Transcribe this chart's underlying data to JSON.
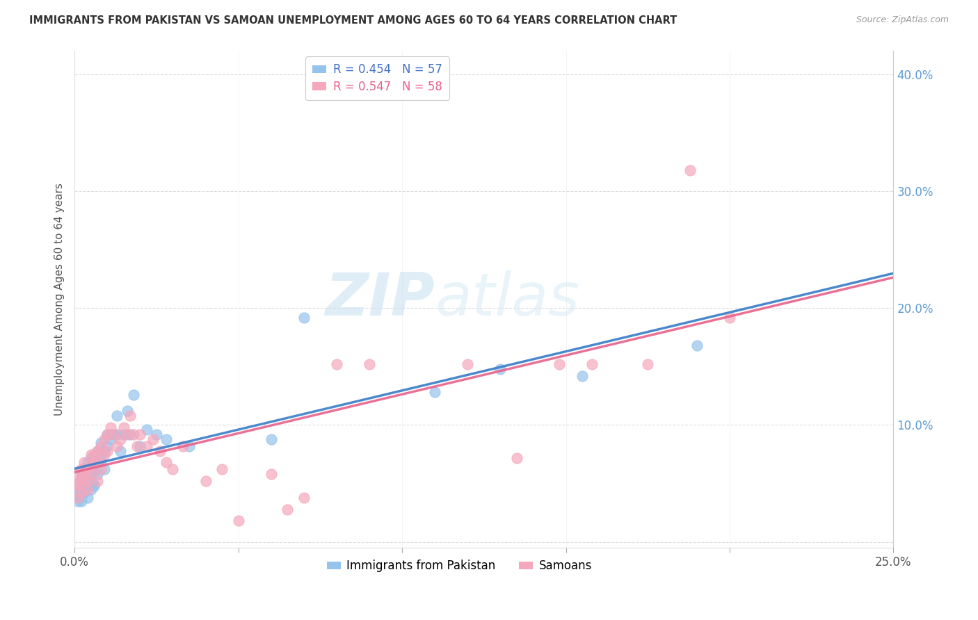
{
  "title": "IMMIGRANTS FROM PAKISTAN VS SAMOAN UNEMPLOYMENT AMONG AGES 60 TO 64 YEARS CORRELATION CHART",
  "source": "Source: ZipAtlas.com",
  "ylabel": "Unemployment Among Ages 60 to 64 years",
  "xlim": [
    0.0,
    0.25
  ],
  "ylim": [
    -0.005,
    0.42
  ],
  "yticks_right": [
    0.0,
    0.1,
    0.2,
    0.3,
    0.4
  ],
  "ytick_labels_right": [
    "",
    "10.0%",
    "20.0%",
    "30.0%",
    "40.0%"
  ],
  "legend1_label": "R = 0.454   N = 57",
  "legend2_label": "R = 0.547   N = 58",
  "legend_series1": "Immigrants from Pakistan",
  "legend_series2": "Samoans",
  "color_pakistan": "#94C3EC",
  "color_samoan": "#F5A7BC",
  "color_pakistan_line": "#3B7EC8",
  "color_samoan_line": "#E8628A",
  "color_pakistan_dashed": "#A0C8E8",
  "watermark_zip": "ZIP",
  "watermark_atlas": "atlas",
  "pakistan_x": [
    0.0005,
    0.001,
    0.001,
    0.001,
    0.001,
    0.002,
    0.002,
    0.002,
    0.002,
    0.002,
    0.003,
    0.003,
    0.003,
    0.003,
    0.004,
    0.004,
    0.004,
    0.004,
    0.005,
    0.005,
    0.005,
    0.005,
    0.006,
    0.006,
    0.006,
    0.006,
    0.007,
    0.007,
    0.007,
    0.008,
    0.008,
    0.008,
    0.009,
    0.009,
    0.01,
    0.01,
    0.011,
    0.011,
    0.012,
    0.013,
    0.013,
    0.014,
    0.015,
    0.016,
    0.017,
    0.018,
    0.02,
    0.022,
    0.025,
    0.028,
    0.035,
    0.06,
    0.07,
    0.11,
    0.13,
    0.155,
    0.19
  ],
  "pakistan_y": [
    0.04,
    0.045,
    0.038,
    0.05,
    0.035,
    0.055,
    0.042,
    0.035,
    0.048,
    0.06,
    0.062,
    0.05,
    0.042,
    0.055,
    0.068,
    0.048,
    0.038,
    0.055,
    0.06,
    0.072,
    0.05,
    0.045,
    0.072,
    0.06,
    0.05,
    0.048,
    0.078,
    0.058,
    0.068,
    0.085,
    0.068,
    0.072,
    0.062,
    0.078,
    0.082,
    0.092,
    0.088,
    0.092,
    0.092,
    0.092,
    0.108,
    0.078,
    0.092,
    0.112,
    0.092,
    0.126,
    0.082,
    0.096,
    0.092,
    0.088,
    0.082,
    0.088,
    0.192,
    0.128,
    0.148,
    0.142,
    0.168
  ],
  "samoan_x": [
    0.0005,
    0.001,
    0.001,
    0.001,
    0.002,
    0.002,
    0.002,
    0.003,
    0.003,
    0.003,
    0.004,
    0.004,
    0.004,
    0.005,
    0.005,
    0.005,
    0.006,
    0.006,
    0.007,
    0.007,
    0.007,
    0.008,
    0.008,
    0.009,
    0.009,
    0.01,
    0.01,
    0.011,
    0.012,
    0.013,
    0.014,
    0.015,
    0.016,
    0.017,
    0.018,
    0.019,
    0.02,
    0.022,
    0.024,
    0.026,
    0.028,
    0.03,
    0.033,
    0.04,
    0.045,
    0.05,
    0.06,
    0.065,
    0.07,
    0.08,
    0.09,
    0.12,
    0.135,
    0.148,
    0.158,
    0.175,
    0.188,
    0.2
  ],
  "samoan_y": [
    0.05,
    0.048,
    0.038,
    0.058,
    0.042,
    0.062,
    0.055,
    0.052,
    0.068,
    0.06,
    0.062,
    0.052,
    0.045,
    0.065,
    0.058,
    0.075,
    0.068,
    0.075,
    0.052,
    0.078,
    0.068,
    0.082,
    0.062,
    0.088,
    0.075,
    0.092,
    0.078,
    0.098,
    0.092,
    0.082,
    0.088,
    0.098,
    0.092,
    0.108,
    0.092,
    0.082,
    0.092,
    0.082,
    0.088,
    0.078,
    0.068,
    0.062,
    0.082,
    0.052,
    0.062,
    0.018,
    0.058,
    0.028,
    0.038,
    0.152,
    0.152,
    0.152,
    0.072,
    0.152,
    0.152,
    0.152,
    0.318,
    0.192
  ]
}
